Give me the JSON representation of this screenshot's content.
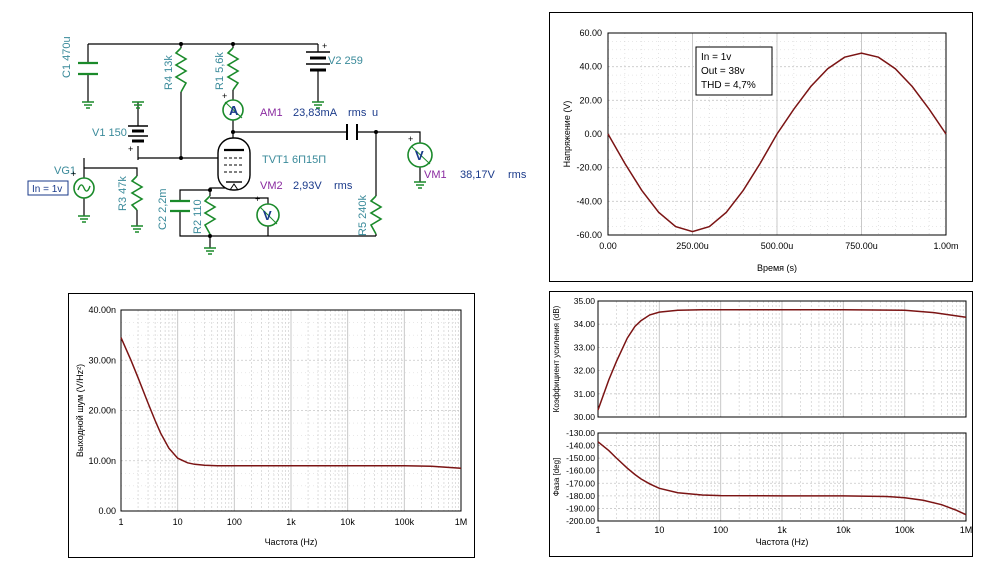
{
  "schematic": {
    "components": {
      "c1": "C1 470u",
      "r4": "R4 13k",
      "r1": "R1 5,6k",
      "v2": "V2 259",
      "v1": "V1 150",
      "am1_name": "AM1",
      "am1_reading": "23,83mA",
      "am1_unit": "rms",
      "am1_u": "u",
      "vg1": "VG1",
      "input_tag": "In = 1v",
      "r3": "R3 47k",
      "tube": "TVT1 6П15П",
      "vm1_name": "VM1",
      "vm1_reading": "38,17V",
      "vm1_unit": "rms",
      "vm2_name": "VM2",
      "vm2_reading": "2,93V",
      "vm2_unit": "rms",
      "c2": "C2 2,2m",
      "r2": "R2 110",
      "r5": "R5 240k"
    },
    "meter_letters": {
      "ammeter": "A",
      "voltmeter": "V"
    }
  },
  "chart_data": [
    {
      "type": "line",
      "title": "",
      "xlabel": "Время (s)",
      "ylabel": "Напряжение (V)",
      "xlim": [
        0,
        0.001
      ],
      "ylim": [
        -60,
        60
      ],
      "x_ticks": [
        "0.00",
        "250.00u",
        "500.00u",
        "750.00u",
        "1.00m"
      ],
      "y_ticks": [
        "60.00",
        "40.00",
        "20.00",
        "0.00",
        "-20.00",
        "-40.00",
        "-60.00"
      ],
      "annotation": [
        "In = 1v",
        "Out = 38v",
        "THD = 4,7%"
      ],
      "series": [
        {
          "color": "#7b1414",
          "x": [
            0,
            5e-05,
            0.0001,
            0.00015,
            0.0002,
            0.00025,
            0.0003,
            0.00035,
            0.0004,
            0.00045,
            0.0005,
            0.00055,
            0.0006,
            0.00065,
            0.0007,
            0.00075,
            0.0008,
            0.00085,
            0.0009,
            0.00095,
            0.001
          ],
          "y": [
            0,
            -17.5,
            -33.5,
            -46.5,
            -55,
            -58,
            -55,
            -46.5,
            -33.5,
            -17.5,
            0,
            14.8,
            28.2,
            38.8,
            45.6,
            48,
            45.6,
            38.8,
            28.2,
            14.8,
            0
          ]
        }
      ],
      "grid": true
    },
    {
      "type": "line",
      "title": "",
      "xlabel": "Частота (Hz)",
      "ylabel": "Выходной шум (V/Hz²)",
      "x_scale": "log",
      "xlim": [
        1,
        1000000
      ],
      "ylim": [
        0,
        40
      ],
      "x_ticks": [
        "1",
        "10",
        "100",
        "1k",
        "10k",
        "100k",
        "1M"
      ],
      "y_ticks": [
        "40.00n",
        "30.00n",
        "20.00n",
        "10.00n",
        "0.00"
      ],
      "series": [
        {
          "color": "#7b1414",
          "x": [
            1,
            1.5,
            2,
            3,
            4,
            5,
            7,
            10,
            15,
            20,
            30,
            50,
            100,
            1000,
            10000,
            100000,
            300000,
            1000000
          ],
          "y": [
            34.5,
            30,
            26.5,
            21.5,
            18,
            15.5,
            12.5,
            10.5,
            9.6,
            9.3,
            9.1,
            9.0,
            9.0,
            9.0,
            9.0,
            9.0,
            8.9,
            8.5
          ]
        }
      ],
      "grid": true
    },
    {
      "type": "line",
      "title": "",
      "xlabel": "",
      "ylabel": "Коэффициент усиления (dB)",
      "x_scale": "log",
      "xlim": [
        1,
        1000000
      ],
      "ylim": [
        30,
        35
      ],
      "y_ticks": [
        "35.00",
        "34.00",
        "33.00",
        "32.00",
        "31.00",
        "30.00"
      ],
      "series": [
        {
          "color": "#7b1414",
          "x": [
            1,
            1.5,
            2,
            3,
            4,
            5,
            7,
            10,
            20,
            50,
            100,
            1000,
            10000,
            100000,
            300000,
            1000000
          ],
          "y": [
            30.3,
            31.6,
            32.4,
            33.4,
            33.9,
            34.15,
            34.4,
            34.52,
            34.6,
            34.62,
            34.62,
            34.62,
            34.62,
            34.6,
            34.5,
            34.3
          ]
        }
      ],
      "grid": true
    },
    {
      "type": "line",
      "title": "",
      "xlabel": "Частота (Hz)",
      "ylabel": "Фаза [deg]",
      "x_scale": "log",
      "xlim": [
        1,
        1000000
      ],
      "ylim": [
        -200,
        -130
      ],
      "x_ticks": [
        "1",
        "10",
        "100",
        "1k",
        "10k",
        "100k",
        "1M"
      ],
      "y_ticks": [
        "-130.00",
        "-140.00",
        "-150.00",
        "-160.00",
        "-170.00",
        "-180.00",
        "-190.00",
        "-200.00"
      ],
      "series": [
        {
          "color": "#7b1414",
          "x": [
            1,
            1.5,
            2,
            3,
            4,
            5,
            7,
            10,
            20,
            50,
            100,
            1000,
            10000,
            50000,
            100000,
            200000,
            400000,
            700000,
            1000000
          ],
          "y": [
            -137,
            -144,
            -150,
            -158,
            -163,
            -166.5,
            -170.5,
            -174,
            -177.5,
            -179.3,
            -179.8,
            -180,
            -180,
            -180.5,
            -181.5,
            -183.5,
            -187,
            -191.5,
            -195
          ]
        }
      ],
      "grid": true
    }
  ]
}
